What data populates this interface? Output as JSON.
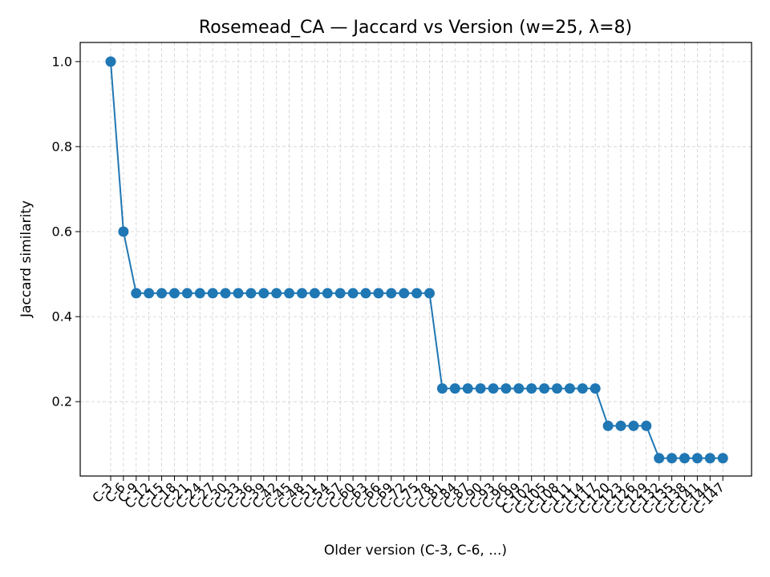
{
  "chart_data": {
    "type": "line",
    "title": "Rosemead_CA — Jaccard vs Version (w=25, λ=8)",
    "xlabel": "Older version (C-3, C-6, ...)",
    "ylabel": "Jaccard similarity",
    "categories": [
      "C-3",
      "C-6",
      "C-9",
      "C-12",
      "C-15",
      "C-18",
      "C-21",
      "C-24",
      "C-27",
      "C-30",
      "C-33",
      "C-36",
      "C-39",
      "C-42",
      "C-45",
      "C-48",
      "C-51",
      "C-54",
      "C-57",
      "C-60",
      "C-63",
      "C-66",
      "C-69",
      "C-72",
      "C-75",
      "C-78",
      "C-81",
      "C-84",
      "C-87",
      "C-90",
      "C-93",
      "C-96",
      "C-99",
      "C-102",
      "C-105",
      "C-108",
      "C-111",
      "C-114",
      "C-117",
      "C-120",
      "C-123",
      "C-126",
      "C-129",
      "C-132",
      "C-135",
      "C-138",
      "C-141",
      "C-144",
      "C-147"
    ],
    "series": [
      {
        "values": [
          1.0,
          0.6,
          0.455,
          0.455,
          0.455,
          0.455,
          0.455,
          0.455,
          0.455,
          0.455,
          0.455,
          0.455,
          0.455,
          0.455,
          0.455,
          0.455,
          0.455,
          0.455,
          0.455,
          0.455,
          0.455,
          0.455,
          0.455,
          0.455,
          0.455,
          0.455,
          0.231,
          0.231,
          0.231,
          0.231,
          0.231,
          0.231,
          0.231,
          0.231,
          0.231,
          0.231,
          0.231,
          0.231,
          0.231,
          0.143,
          0.143,
          0.143,
          0.143,
          0.067,
          0.067,
          0.067,
          0.067,
          0.067,
          0.067
        ],
        "color": "#1f77b4"
      }
    ],
    "yticks": [
      "0.2",
      "0.4",
      "0.6",
      "0.8",
      "1.0"
    ],
    "ylim": [
      0.025,
      1.045
    ],
    "grid": true,
    "marker": "circle"
  }
}
